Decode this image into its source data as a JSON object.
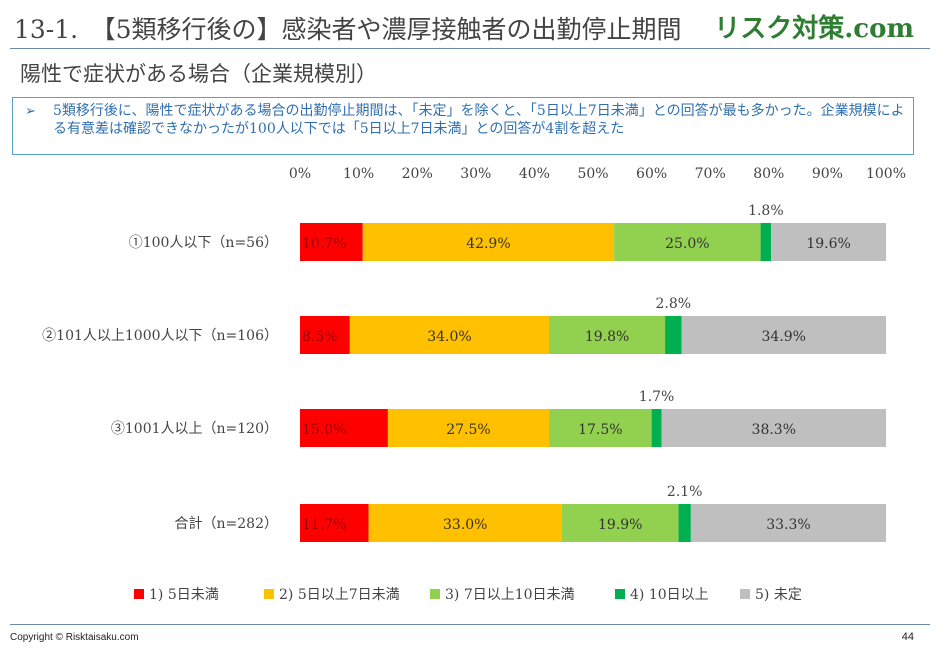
{
  "header": {
    "title": "13-1.　【5類移行後の】感染者や濃厚接触者の出勤停止期間",
    "brand": "リスク対策.com"
  },
  "subtitle": "陽性で症状がある場合（企業規模別）",
  "callout": {
    "bullet": "➢",
    "text": "5類移行後に、陽性で症状がある場合の出勤停止期間は、「未定」を除くと、「5日以上7日未満」との回答が最も多かった。企業規模による有意差は確認できなかったが100人以下では「5日以上7日未満」との回答が4割を超えた"
  },
  "chart_data": {
    "type": "bar",
    "orientation": "horizontal",
    "stacked": "percent",
    "title": "",
    "xlabel": "",
    "ylabel": "",
    "xlim": [
      0,
      100
    ],
    "x_ticks": [
      "0%",
      "10%",
      "20%",
      "30%",
      "40%",
      "50%",
      "60%",
      "70%",
      "80%",
      "90%",
      "100%"
    ],
    "axis_position": "top",
    "legend_position": "bottom",
    "categories": [
      "①100人以下（n=56）",
      "②101人以上1000人以下（n=106）",
      "③1001人以上（n=120）",
      "合計（n=282）"
    ],
    "series": [
      {
        "name": "1) 5日未満",
        "color": "#ff0000",
        "label_color": "#9b0000",
        "values": [
          10.7,
          8.5,
          15.0,
          11.7
        ]
      },
      {
        "name": "2) 5日以上7日未満",
        "color": "#ffc000",
        "label_color": "#333333",
        "values": [
          42.9,
          34.0,
          27.5,
          33.0
        ]
      },
      {
        "name": "3) 7日以上10日未満",
        "color": "#92d050",
        "label_color": "#333333",
        "values": [
          25.0,
          19.8,
          17.5,
          19.9
        ]
      },
      {
        "name": "4) 10日以上",
        "color": "#00b050",
        "label_color": "#333333",
        "values": [
          1.8,
          2.8,
          1.7,
          2.1
        ]
      },
      {
        "name": "5) 未定",
        "color": "#bfbfbf",
        "label_color": "#333333",
        "values": [
          19.6,
          34.9,
          38.3,
          33.3
        ]
      }
    ]
  },
  "footer": {
    "copyright": "Copyright © Risktaisaku.com",
    "page": "44"
  }
}
